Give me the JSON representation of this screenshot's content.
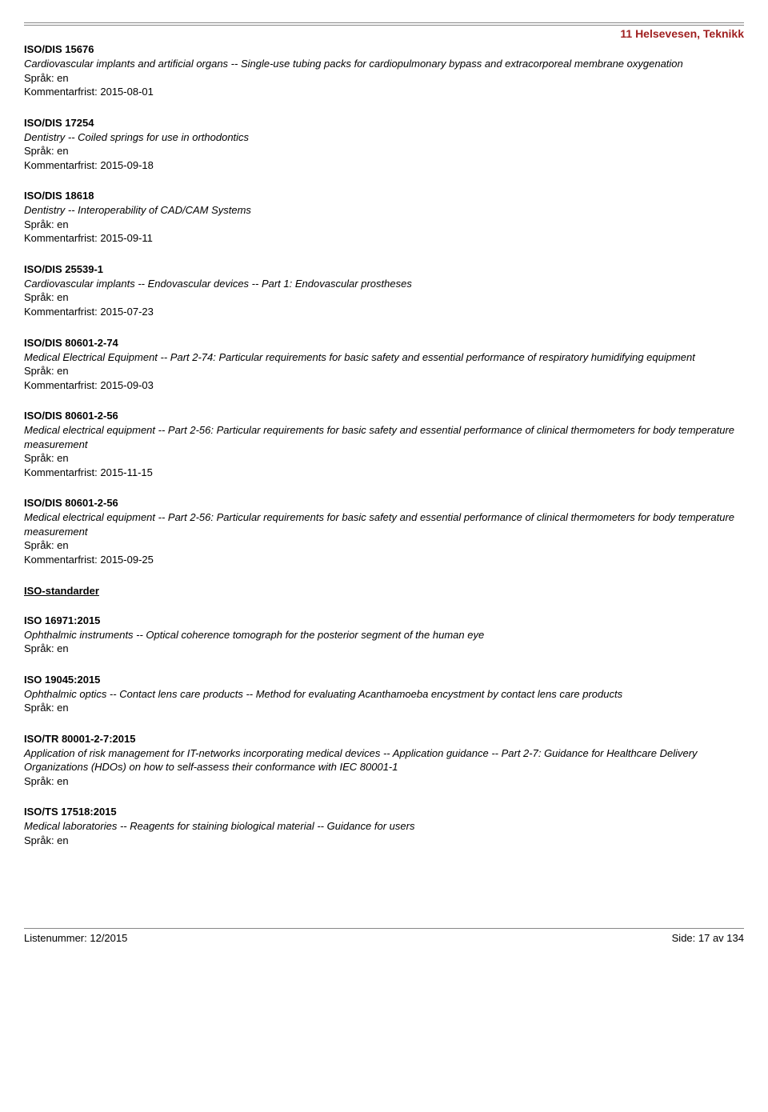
{
  "category_title": "11  Helsevesen, Teknikk",
  "lang_prefix": "Språk: ",
  "lang_value": "en",
  "comment_prefix": "Kommentarfrist: ",
  "entries_dis": [
    {
      "code": "ISO/DIS 15676",
      "title": "Cardiovascular implants and artificial organs  -- Single-use tubing packs for cardiopulmonary bypass and extracorporeal membrane oxygenation",
      "deadline": "2015-08-01"
    },
    {
      "code": "ISO/DIS 17254",
      "title": "Dentistry -- Coiled springs for use in orthodontics",
      "deadline": "2015-09-18"
    },
    {
      "code": "ISO/DIS 18618",
      "title": "Dentistry -- Interoperability of CAD/CAM Systems",
      "deadline": "2015-09-11"
    },
    {
      "code": "ISO/DIS 25539-1",
      "title": "Cardiovascular implants -- Endovascular devices -- Part 1: Endovascular prostheses",
      "deadline": "2015-07-23"
    },
    {
      "code": "ISO/DIS 80601-2-74",
      "title": "Medical Electrical Equipment -- Part 2-74: Particular requirements for basic safety and essential performance of respiratory humidifying equipment",
      "deadline": "2015-09-03"
    },
    {
      "code": "ISO/DIS 80601-2-56",
      "title": "Medical electrical equipment -- Part 2-56: Particular requirements for basic safety and essential performance of clinical thermometers for body temperature measurement",
      "deadline": "2015-11-15"
    },
    {
      "code": "ISO/DIS 80601-2-56",
      "title": "Medical electrical equipment -- Part 2-56: Particular requirements for basic safety and essential performance of clinical thermometers for body temperature measurement",
      "deadline": "2015-09-25"
    }
  ],
  "section_heading": "ISO-standarder",
  "entries_std": [
    {
      "code": "ISO 16971:2015",
      "title": "Ophthalmic instruments -- Optical coherence tomograph for the posterior segment of the human eye"
    },
    {
      "code": "ISO 19045:2015",
      "title": "Ophthalmic optics -- Contact lens care products -- Method for evaluating Acanthamoeba encystment by contact lens care products"
    },
    {
      "code": "ISO/TR 80001-2-7:2015",
      "title": "Application of risk management for IT-networks incorporating medical devices -- Application guidance -- Part 2-7: Guidance for Healthcare Delivery Organizations (HDOs) on how to self-assess their conformance with IEC 80001-1"
    },
    {
      "code": "ISO/TS 17518:2015",
      "title": "Medical laboratories -- Reagents for staining biological material -- Guidance for users"
    }
  ],
  "footer": {
    "left": "Listenummer: 12/2015",
    "right": "Side: 17 av 134"
  }
}
